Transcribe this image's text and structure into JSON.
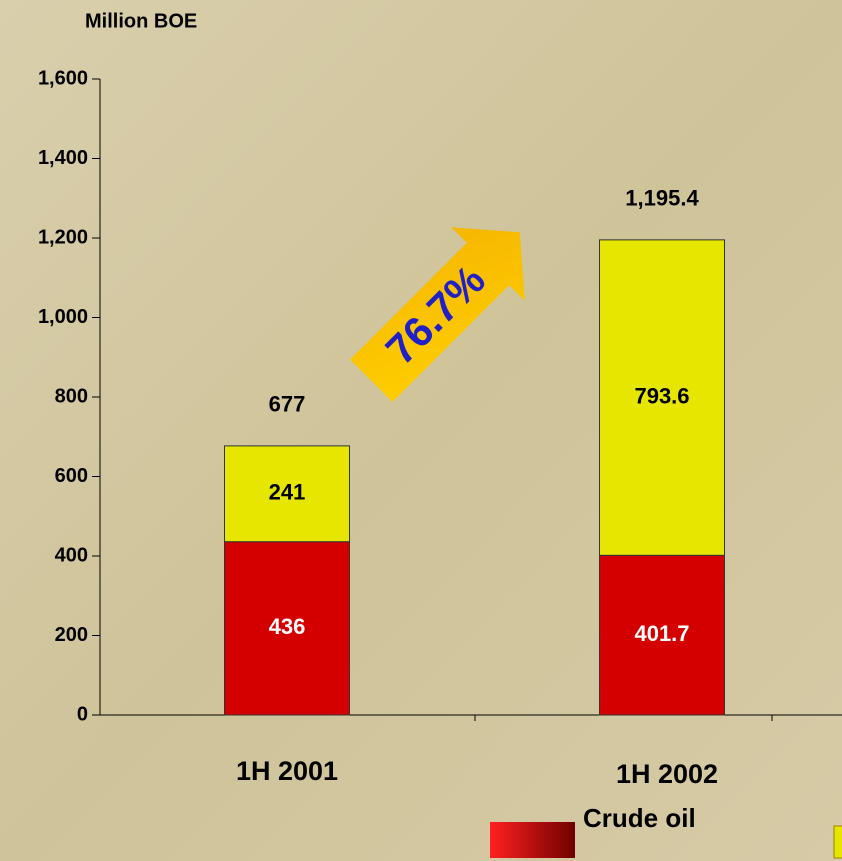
{
  "chart_data": {
    "type": "bar",
    "stacked": true,
    "y_label": "Million BOE",
    "categories": [
      "1H 2001",
      "1H 2002"
    ],
    "series": [
      {
        "name": "Crude oil",
        "color": "#d40000",
        "values": [
          436,
          401.7
        ]
      },
      {
        "color": "#e6e600",
        "values": [
          241,
          793.6
        ]
      }
    ],
    "totals": [
      677,
      1195.4
    ],
    "total_labels": [
      "677",
      "1,195.4"
    ],
    "annotation": "76.7%",
    "ylim": [
      0,
      1600
    ],
    "yticks": [
      0,
      200,
      400,
      600,
      800,
      {
        "value": 1000,
        "label": "1,000"
      },
      {
        "value": 1200,
        "label": "1,200"
      },
      {
        "value": 1400,
        "label": "1,400"
      },
      {
        "value": 1600,
        "label": "1,600"
      }
    ]
  }
}
